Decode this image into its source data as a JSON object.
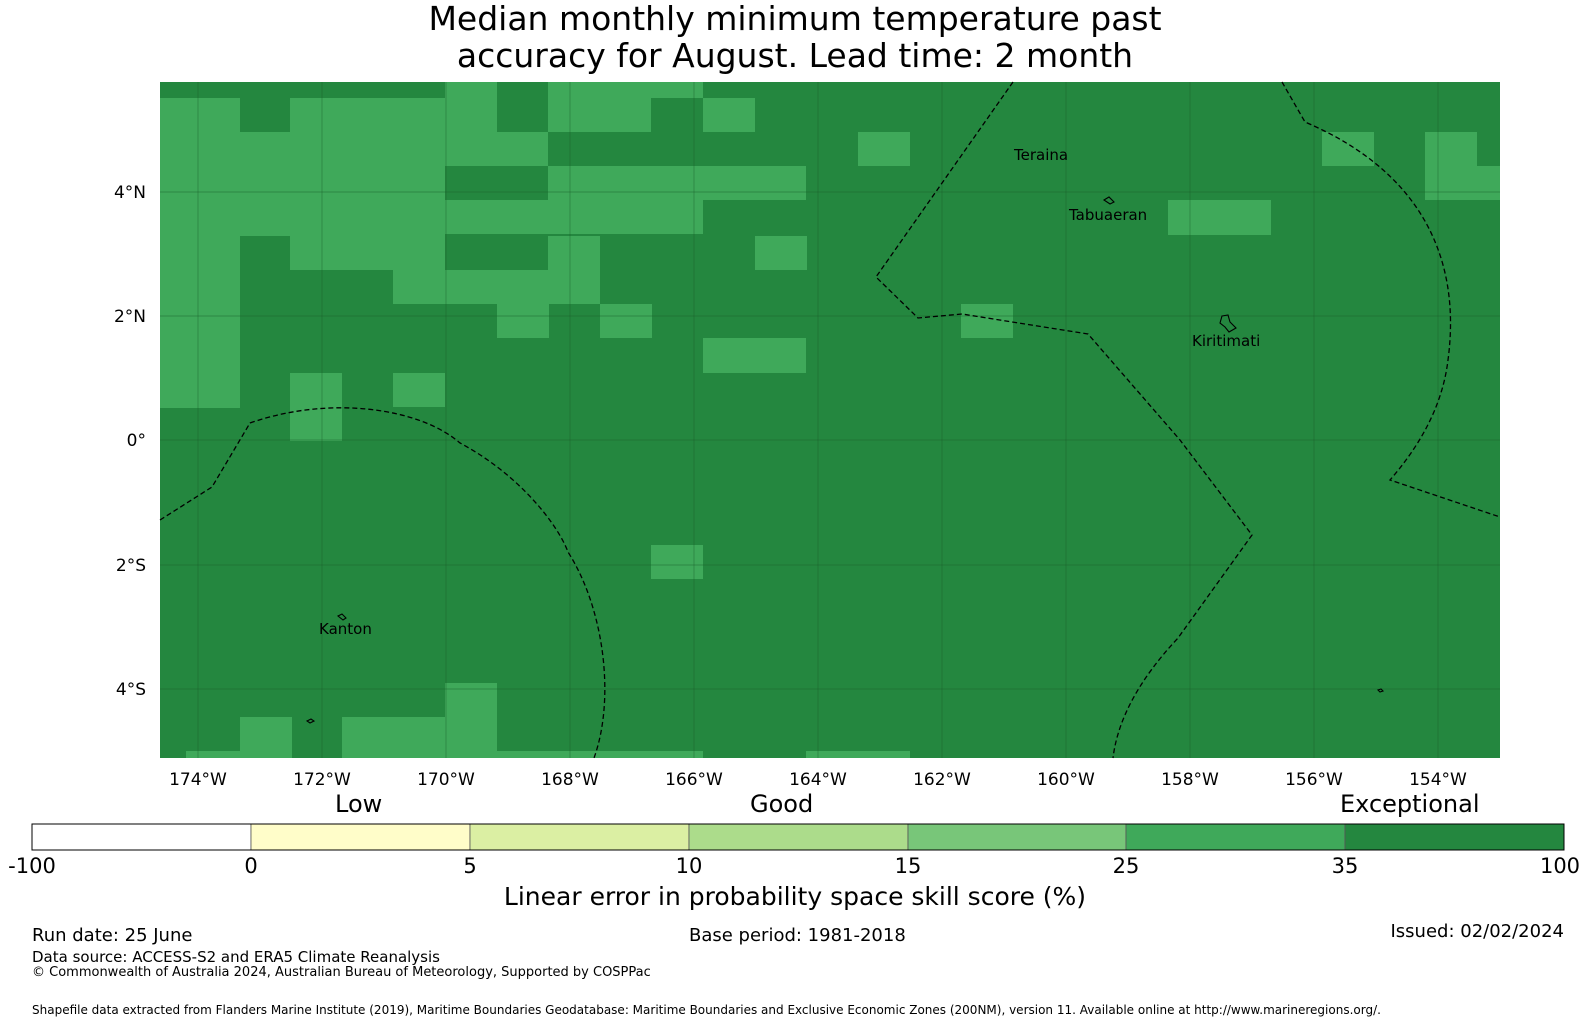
{
  "title": {
    "line1": "Median monthly minimum temperature past",
    "line2": "accuracy for August. Lead time: 2 month"
  },
  "map": {
    "background_color": "#24873f",
    "lat_ticks": [
      "4°N",
      "2°N",
      "0°",
      "2°S",
      "4°S"
    ],
    "lon_ticks": [
      "174°W",
      "172°W",
      "170°W",
      "168°W",
      "166°W",
      "164°W",
      "162°W",
      "160°W",
      "158°W",
      "156°W",
      "154°W"
    ],
    "places": [
      "Teraina",
      "Tabuaeran",
      "Kiritimati",
      "Kanton"
    ],
    "skill_colors": {
      "25_35": "#3fa95a",
      "35_100": "#24873f"
    }
  },
  "colorbar": {
    "region_labels": [
      "Low",
      "Good",
      "Exceptional"
    ],
    "tick_labels": [
      "-100",
      "0",
      "5",
      "10",
      "15",
      "25",
      "35",
      "100"
    ],
    "colors": [
      "#ffffff",
      "#fffdc9",
      "#dbefa3",
      "#acdc8b",
      "#78c679",
      "#3fa95a",
      "#24873f"
    ],
    "label": "Linear error in probability space skill score (%)"
  },
  "footer": {
    "run_date": "Run date: 25 June",
    "base_period": "Base period: 1981-2018",
    "issued": "Issued: 02/02/2024",
    "data_source": "Data source: ACCESS-S2 and ERA5 Climate Reanalysis",
    "copyright": "© Commonwealth of Australia 2024, Australian Bureau of Meteorology, Supported by COSPPac",
    "shapefile": "Shapefile data extracted from Flanders Marine Institute (2019), Maritime Boundaries Geodatabase: Maritime Boundaries and Exclusive Economic Zones (200NM), version 11. Available online at http://www.marineregions.org/."
  }
}
